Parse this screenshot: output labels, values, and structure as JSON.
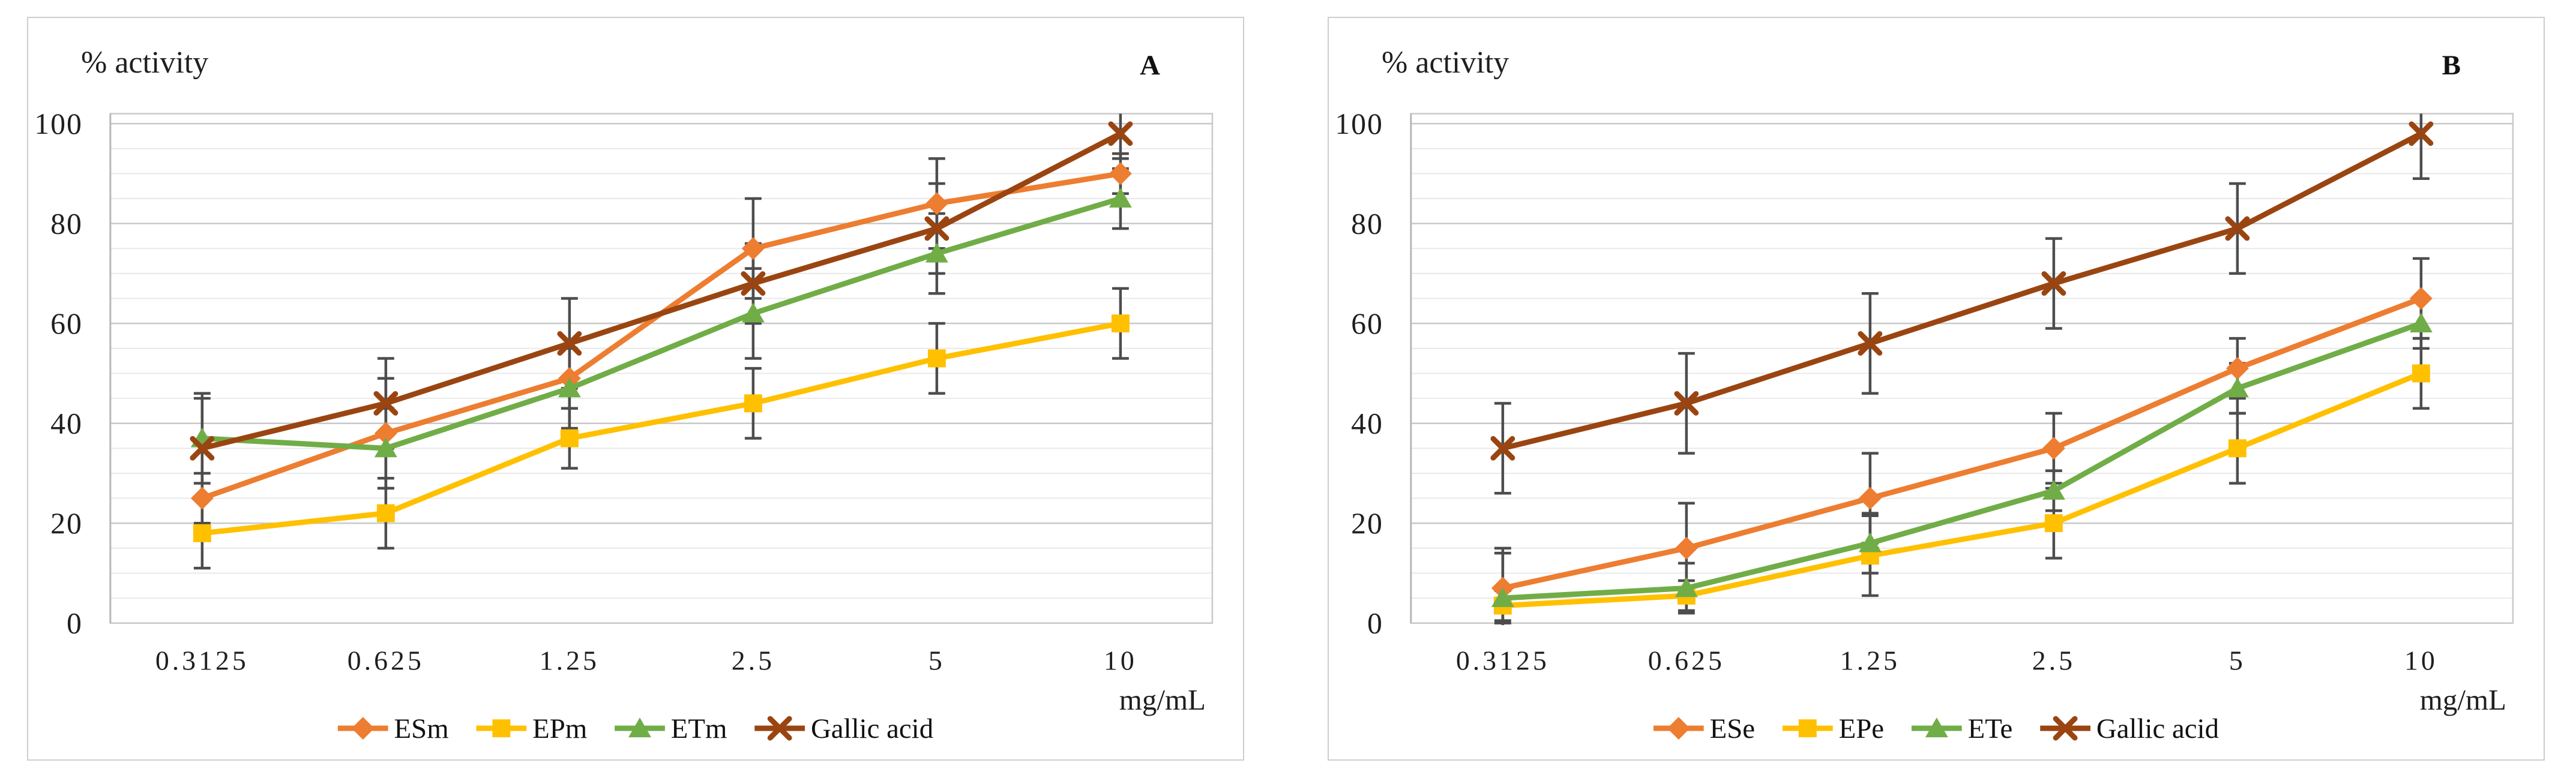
{
  "figure": {
    "background": "#ffffff",
    "description": "Two line charts of antioxidant % activity versus extract concentration with error bars"
  },
  "styles": {
    "text_color": "#1f1f1f",
    "error_bar_color": "#4d4d4d",
    "grid_minor_color": "#e9e9e9",
    "grid_major_color": "#c9c9c9",
    "axis_line_color": "#b7b7b7",
    "panel_border_color": "#cdcdcd"
  },
  "chart_data": [
    {
      "type": "line",
      "panel_label": "A",
      "y_axis_title": "% activity",
      "x_unit_label": "mg/mL",
      "categories": [
        "0.3125",
        "0.625",
        "1.25",
        "2.5",
        "5",
        "10"
      ],
      "y_ticks": [
        0,
        20,
        40,
        60,
        80,
        100
      ],
      "ylim": [
        0,
        102
      ],
      "grid": "horizontal, minor every 5, major every 20",
      "legend_position": "bottom",
      "series": [
        {
          "name": "ESm",
          "color": "#ED7D31",
          "marker": "diamond",
          "values": [
            25,
            38,
            49,
            75,
            84,
            90
          ],
          "errors": [
            5,
            11,
            6,
            10,
            9,
            4
          ]
        },
        {
          "name": "EPm",
          "color": "#FFC000",
          "marker": "square",
          "values": [
            18,
            22,
            37,
            44,
            53,
            60
          ],
          "errors": [
            7,
            7,
            6,
            7,
            7,
            7
          ]
        },
        {
          "name": "ETm",
          "color": "#70AD47",
          "marker": "triangle",
          "values": [
            37,
            35,
            47,
            62,
            74,
            85
          ],
          "errors": [
            9,
            8,
            8,
            9,
            8,
            6
          ]
        },
        {
          "name": "Gallic acid",
          "color": "#9A4511",
          "marker": "x",
          "values": [
            35,
            44,
            56,
            68,
            79,
            98
          ],
          "errors": [
            10,
            9,
            9,
            8,
            9,
            5
          ]
        }
      ]
    },
    {
      "type": "line",
      "panel_label": "B",
      "y_axis_title": "% activity",
      "x_unit_label": "mg/mL",
      "categories": [
        "0.3125",
        "0.625",
        "1.25",
        "2.5",
        "5",
        "10"
      ],
      "y_ticks": [
        0,
        20,
        40,
        60,
        80,
        100
      ],
      "ylim": [
        0,
        102
      ],
      "grid": "horizontal, minor every 5, major every 20",
      "legend_position": "bottom",
      "series": [
        {
          "name": "ESe",
          "color": "#ED7D31",
          "marker": "diamond",
          "values": [
            7,
            15,
            25,
            35,
            51,
            65
          ],
          "errors": [
            7,
            9,
            9,
            7,
            6,
            8
          ]
        },
        {
          "name": "EPe",
          "color": "#FFC000",
          "marker": "square",
          "values": [
            3.5,
            5.5,
            13.5,
            20,
            35,
            50
          ],
          "errors": [
            3,
            3,
            8,
            7,
            7,
            7
          ]
        },
        {
          "name": "ETe",
          "color": "#70AD47",
          "marker": "triangle",
          "values": [
            5,
            7,
            16,
            26.5,
            47,
            60
          ],
          "errors": [
            10,
            5,
            6,
            4,
            5,
            5
          ]
        },
        {
          "name": "Gallic acid",
          "color": "#9A4511",
          "marker": "x",
          "values": [
            35,
            44,
            56,
            68,
            79,
            98
          ],
          "errors": [
            9,
            10,
            10,
            9,
            9,
            9
          ]
        }
      ]
    }
  ]
}
